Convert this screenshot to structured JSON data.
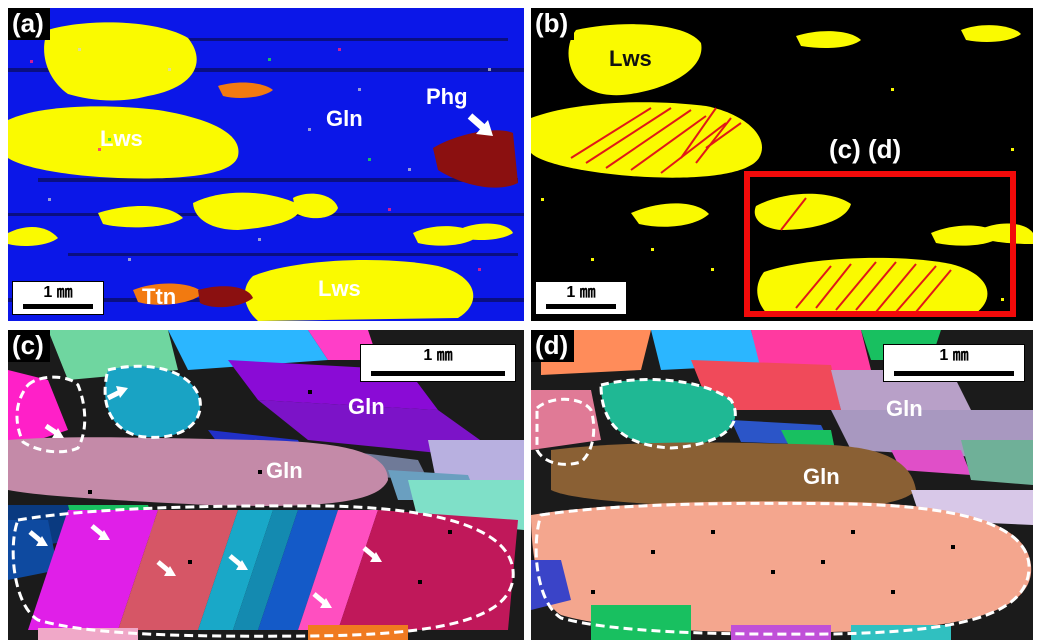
{
  "panels": {
    "a": {
      "label": "(a)",
      "minerals": {
        "gln": "Gln",
        "lws_upper": "Lws",
        "lws_lower": "Lws",
        "phg": "Phg",
        "ttn": "Ttn"
      },
      "scale": "1 ㎜"
    },
    "b": {
      "label": "(b)",
      "minerals": {
        "lws": "Lws"
      },
      "inset_label": "(c) (d)",
      "scale": "1 ㎜"
    },
    "c": {
      "label": "(c)",
      "minerals": {
        "gln_top": "Gln",
        "gln_mid": "Gln"
      },
      "scale": "1 ㎜"
    },
    "d": {
      "label": "(d)",
      "minerals": {
        "gln_top": "Gln",
        "gln_mid": "Gln"
      },
      "scale": "1 ㎜"
    }
  },
  "colors": {
    "glaucophane_phase": "#0b17e8",
    "lawsonite_phase": "#fafa00",
    "twin_boundary": "#e01818",
    "highlight_box": "#f20a0a"
  }
}
